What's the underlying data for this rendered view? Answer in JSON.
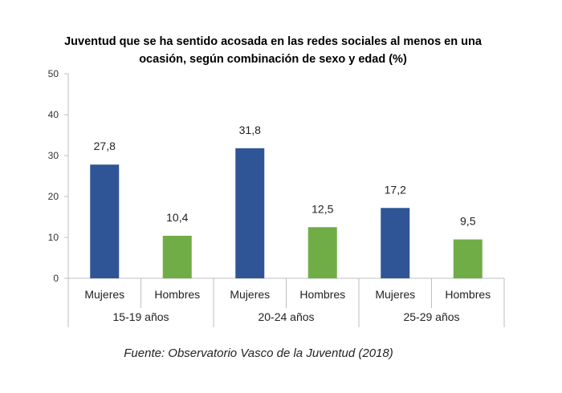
{
  "chart_data": {
    "type": "bar",
    "title_lines": [
      "Juventud que se ha sentido acosada en las redes sociales al menos en una",
      "ocasión, según combinación de sexo y edad (%)"
    ],
    "groups": [
      "15-19 años",
      "20-24 años",
      "25-29 años"
    ],
    "categories": [
      "Mujeres",
      "Hombres"
    ],
    "values": [
      [
        27.8,
        10.4
      ],
      [
        31.8,
        12.5
      ],
      [
        17.2,
        9.5
      ]
    ],
    "value_labels": [
      [
        "27,8",
        "10,4"
      ],
      [
        "31,8",
        "12,5"
      ],
      [
        "17,2",
        "9,5"
      ]
    ],
    "colors": {
      "Mujeres": "#2F5597",
      "Hombres": "#70AD47"
    },
    "ylim": [
      0,
      50
    ],
    "yticks": [
      "0",
      "10",
      "20",
      "30",
      "40",
      "50"
    ],
    "grid": false,
    "legend": "none"
  },
  "source": "Fuente: Observatorio Vasco de la Juventud (2018)"
}
